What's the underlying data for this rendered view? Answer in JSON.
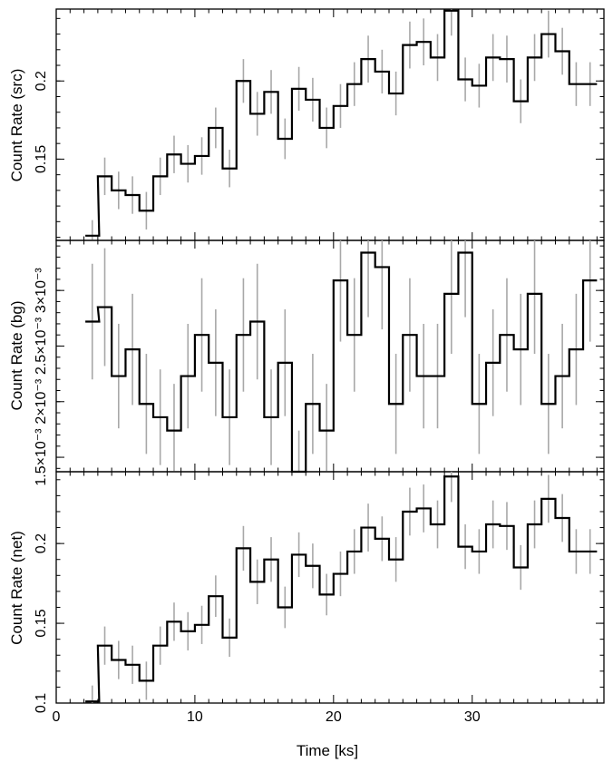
{
  "chart_data": [
    {
      "type": "line",
      "step": true,
      "ylabel": "Count Rate (src)",
      "xlim": [
        0,
        39.5
      ],
      "ylim": [
        0.098,
        0.246
      ],
      "ytick_values": [
        0.15,
        0.2
      ],
      "ytick_labels": [
        "0.15",
        "0.2"
      ],
      "xtick_values": [
        0,
        10,
        20,
        30
      ],
      "xtick_labels": [],
      "minor_y_step": 0.01,
      "x": [
        2.6,
        3.5,
        4.5,
        5.5,
        6.5,
        7.5,
        8.5,
        9.5,
        10.5,
        11.5,
        12.5,
        13.5,
        14.5,
        15.5,
        16.5,
        17.5,
        18.5,
        19.5,
        20.5,
        21.5,
        22.5,
        23.5,
        24.5,
        25.5,
        26.5,
        27.5,
        28.5,
        29.5,
        30.5,
        31.5,
        32.5,
        33.5,
        34.5,
        35.5,
        36.5,
        37.5,
        38.5
      ],
      "values": [
        0.101,
        0.139,
        0.13,
        0.127,
        0.117,
        0.139,
        0.153,
        0.147,
        0.152,
        0.17,
        0.144,
        0.2,
        0.179,
        0.193,
        0.163,
        0.195,
        0.188,
        0.17,
        0.184,
        0.198,
        0.214,
        0.206,
        0.192,
        0.223,
        0.225,
        0.215,
        0.245,
        0.201,
        0.197,
        0.215,
        0.214,
        0.187,
        0.215,
        0.23,
        0.219,
        0.198,
        0.198
      ],
      "errors": [
        0.01,
        0.012,
        0.012,
        0.012,
        0.012,
        0.012,
        0.012,
        0.012,
        0.012,
        0.013,
        0.012,
        0.014,
        0.014,
        0.014,
        0.013,
        0.014,
        0.014,
        0.013,
        0.014,
        0.014,
        0.015,
        0.014,
        0.014,
        0.015,
        0.015,
        0.015,
        0.016,
        0.014,
        0.014,
        0.015,
        0.015,
        0.014,
        0.015,
        0.015,
        0.015,
        0.014,
        0.014
      ]
    },
    {
      "type": "line",
      "step": true,
      "ylabel": "Count Rate (bg)",
      "xlim": [
        0,
        39.5
      ],
      "ylim": [
        0.00137,
        0.00345
      ],
      "ytick_values": [
        0.0015,
        0.002,
        0.0025,
        0.003
      ],
      "ytick_labels": [
        "1.5×10⁻³",
        "2×10⁻³",
        "2.5×10⁻³",
        "3×10⁻³"
      ],
      "xtick_values": [
        0,
        10,
        20,
        30
      ],
      "xtick_labels": [],
      "minor_y_step": 0.0001,
      "x": [
        2.6,
        3.5,
        4.5,
        5.5,
        6.5,
        7.5,
        8.5,
        9.5,
        10.5,
        11.5,
        12.5,
        13.5,
        14.5,
        15.5,
        16.5,
        17.5,
        18.5,
        19.5,
        20.5,
        21.5,
        22.5,
        23.5,
        24.5,
        25.5,
        26.5,
        27.5,
        28.5,
        29.5,
        30.5,
        31.5,
        32.5,
        33.5,
        34.5,
        35.5,
        36.5,
        37.5,
        38.5
      ],
      "values": [
        0.00272,
        0.00285,
        0.00223,
        0.00247,
        0.00198,
        0.00186,
        0.00174,
        0.00223,
        0.0026,
        0.00235,
        0.00186,
        0.0026,
        0.00272,
        0.00186,
        0.00235,
        0.00137,
        0.00198,
        0.00174,
        0.00309,
        0.0026,
        0.00334,
        0.00321,
        0.00198,
        0.0026,
        0.00223,
        0.00223,
        0.00297,
        0.00334,
        0.00198,
        0.00235,
        0.0026,
        0.00247,
        0.00297,
        0.00198,
        0.00223,
        0.00247,
        0.00309
      ],
      "errors": [
        0.00052,
        0.00053,
        0.00047,
        0.0005,
        0.00045,
        0.00043,
        0.00042,
        0.00047,
        0.00051,
        0.00048,
        0.00043,
        0.00051,
        0.00052,
        0.00043,
        0.00048,
        0.00037,
        0.00045,
        0.00042,
        0.00055,
        0.00051,
        0.00058,
        0.00056,
        0.00045,
        0.00051,
        0.00047,
        0.00047,
        0.00054,
        0.00058,
        0.00045,
        0.00048,
        0.00051,
        0.0005,
        0.00054,
        0.00045,
        0.00047,
        0.0005,
        0.00055
      ]
    },
    {
      "type": "line",
      "step": true,
      "xlabel": "Time [ks]",
      "ylabel": "Count Rate (net)",
      "xlim": [
        0,
        39.5
      ],
      "ylim": [
        0.1,
        0.245
      ],
      "ytick_values": [
        0.1,
        0.15,
        0.2
      ],
      "ytick_labels": [
        "0.1",
        "0.15",
        "0.2"
      ],
      "xtick_values": [
        0,
        10,
        20,
        30
      ],
      "xtick_labels": [
        "0",
        "10",
        "20",
        "30"
      ],
      "minor_y_step": 0.01,
      "x": [
        2.6,
        3.5,
        4.5,
        5.5,
        6.5,
        7.5,
        8.5,
        9.5,
        10.5,
        11.5,
        12.5,
        13.5,
        14.5,
        15.5,
        16.5,
        17.5,
        18.5,
        19.5,
        20.5,
        21.5,
        22.5,
        23.5,
        24.5,
        25.5,
        26.5,
        27.5,
        28.5,
        29.5,
        30.5,
        31.5,
        32.5,
        33.5,
        34.5,
        35.5,
        36.5,
        37.5,
        38.5
      ],
      "values": [
        0.101,
        0.136,
        0.127,
        0.124,
        0.114,
        0.136,
        0.151,
        0.145,
        0.149,
        0.167,
        0.141,
        0.197,
        0.176,
        0.19,
        0.16,
        0.193,
        0.186,
        0.168,
        0.181,
        0.195,
        0.21,
        0.203,
        0.19,
        0.22,
        0.222,
        0.212,
        0.242,
        0.198,
        0.195,
        0.212,
        0.211,
        0.185,
        0.212,
        0.228,
        0.216,
        0.195,
        0.195
      ],
      "errors": [
        0.01,
        0.012,
        0.012,
        0.012,
        0.012,
        0.012,
        0.012,
        0.012,
        0.012,
        0.013,
        0.012,
        0.014,
        0.014,
        0.014,
        0.013,
        0.014,
        0.014,
        0.013,
        0.014,
        0.014,
        0.015,
        0.014,
        0.014,
        0.015,
        0.015,
        0.015,
        0.016,
        0.014,
        0.014,
        0.015,
        0.015,
        0.014,
        0.015,
        0.015,
        0.015,
        0.014,
        0.014
      ]
    }
  ]
}
